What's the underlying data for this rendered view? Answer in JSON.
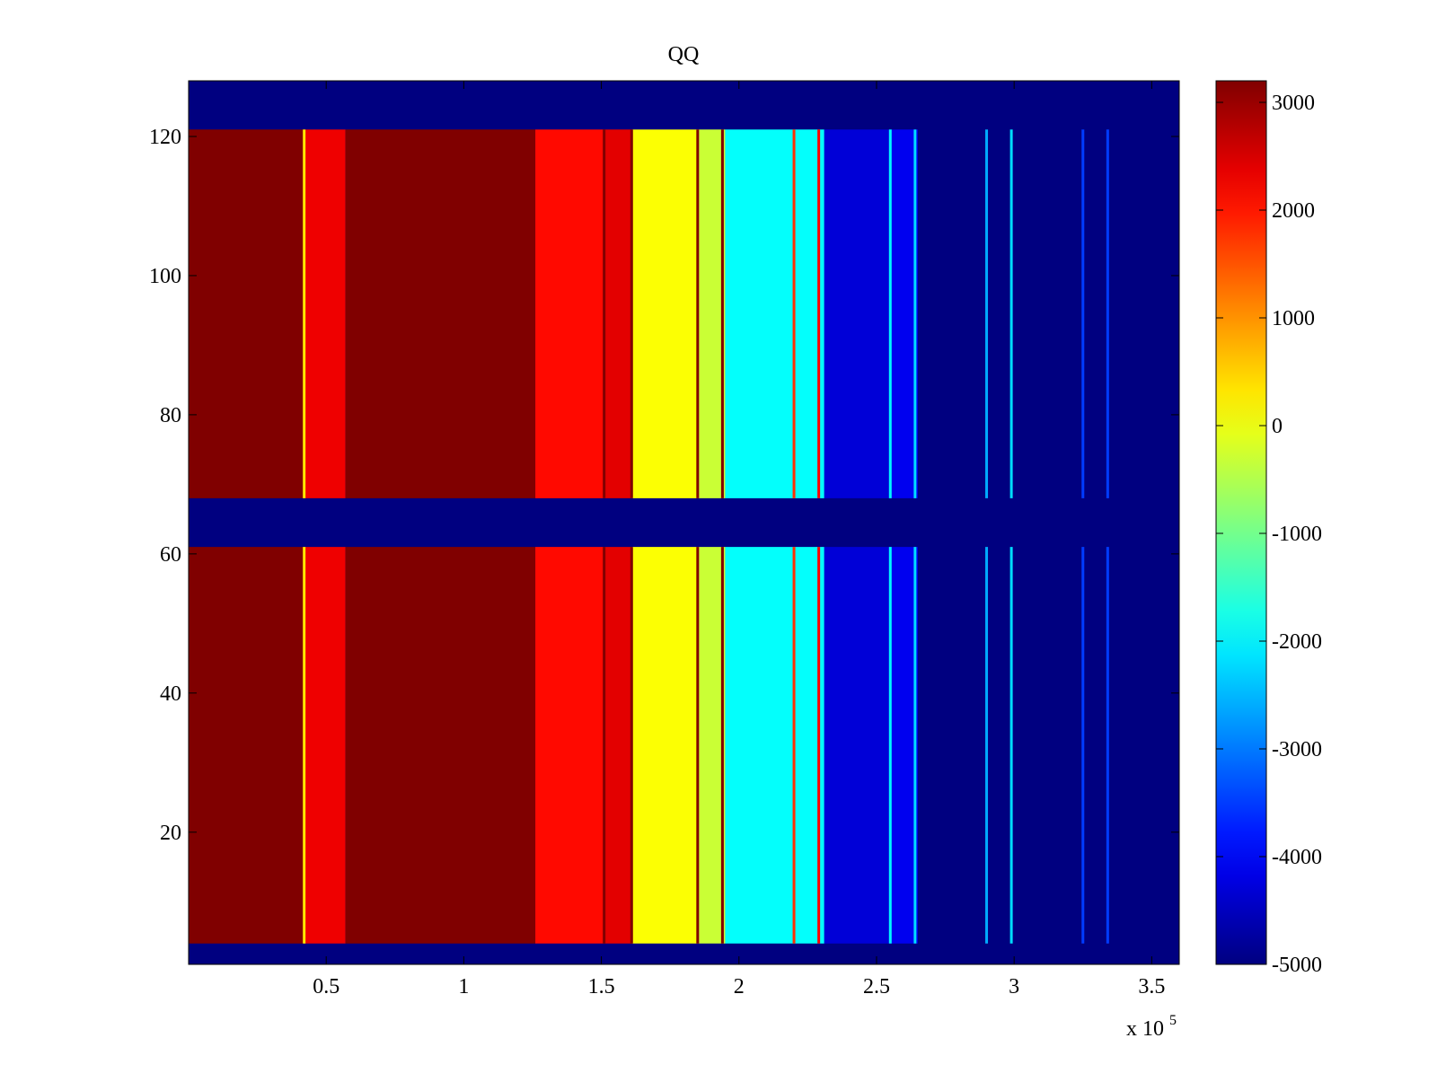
{
  "chart_data": {
    "type": "heatmap",
    "title": "QQ",
    "xlabel": "",
    "ylabel": "",
    "x_exponent_label": {
      "prefix": "x 10",
      "exponent": "5"
    },
    "xlim": [
      0,
      3.6
    ],
    "ylim": [
      1,
      128
    ],
    "x_ticks": [
      0.5,
      1,
      1.5,
      2,
      2.5,
      3,
      3.5
    ],
    "x_tick_labels": [
      "0.5",
      "1",
      "1.5",
      "2",
      "2.5",
      "3",
      "3.5"
    ],
    "y_ticks": [
      20,
      40,
      60,
      80,
      100,
      120
    ],
    "y_tick_labels": [
      "20",
      "40",
      "60",
      "80",
      "100",
      "120"
    ],
    "colormap": "jet",
    "clim": [
      -5000,
      3200
    ],
    "colorbar_ticks": [
      3000,
      2000,
      1000,
      0,
      -1000,
      -2000,
      -3000,
      -4000,
      -5000
    ],
    "colorbar_tick_labels": [
      "3000",
      "2000",
      "1000",
      "0",
      "-1000",
      "-2000",
      "-3000",
      "-4000",
      "-5000"
    ],
    "row_blocks": [
      {
        "y_from": 4,
        "y_to": 61,
        "filled": true
      },
      {
        "y_from": 68,
        "y_to": 121,
        "filled": true
      }
    ],
    "column_bands": [
      {
        "x_from": 0.0,
        "x_to": 0.42,
        "value": 3200
      },
      {
        "x_from": 0.42,
        "x_to": 0.57,
        "value": 2300
      },
      {
        "x_from": 0.57,
        "x_to": 1.26,
        "value": 3200
      },
      {
        "x_from": 1.26,
        "x_to": 1.51,
        "value": 2100
      },
      {
        "x_from": 1.51,
        "x_to": 1.61,
        "value": 2400
      },
      {
        "x_from": 1.61,
        "x_to": 1.85,
        "value": 100
      },
      {
        "x_from": 1.85,
        "x_to": 1.95,
        "value": -300
      },
      {
        "x_from": 1.95,
        "x_to": 2.31,
        "value": -1900
      },
      {
        "x_from": 2.31,
        "x_to": 2.55,
        "value": -4300
      },
      {
        "x_from": 2.55,
        "x_to": 2.65,
        "value": -4100
      },
      {
        "x_from": 2.65,
        "x_to": 3.6,
        "value": -5000
      }
    ],
    "vertical_lines": [
      {
        "x": 0.42,
        "value": 300
      },
      {
        "x": 1.51,
        "value": 3200
      },
      {
        "x": 1.61,
        "value": 3200
      },
      {
        "x": 1.85,
        "value": 3200
      },
      {
        "x": 1.94,
        "value": 3200
      },
      {
        "x": 2.2,
        "value": 1800
      },
      {
        "x": 2.29,
        "value": 2200
      },
      {
        "x": 2.55,
        "value": -2000
      },
      {
        "x": 2.64,
        "value": -2200
      },
      {
        "x": 2.9,
        "value": -2600
      },
      {
        "x": 2.99,
        "value": -2200
      },
      {
        "x": 3.25,
        "value": -3500
      },
      {
        "x": 3.34,
        "value": -3500
      }
    ],
    "background_value": -5000
  }
}
